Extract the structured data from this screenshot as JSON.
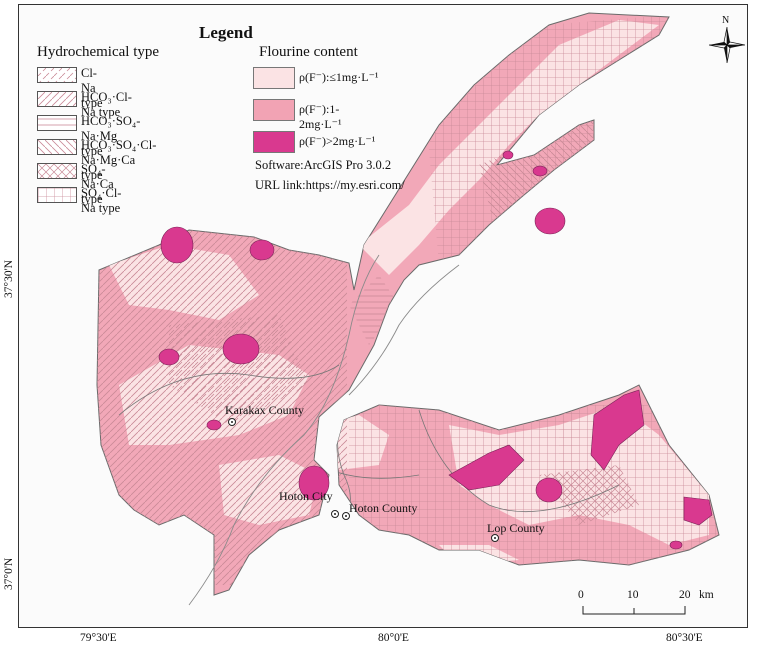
{
  "legend": {
    "title": "Legend",
    "hydro_title": "Hydrochemical type",
    "hydro_items": [
      {
        "label": "Cl-Na type",
        "pattern": "diag-dash"
      },
      {
        "label": "HCO₃·Cl-Na type",
        "pattern": "diag-solid"
      },
      {
        "label": "HCO₃·SO₄-Na·Mg type",
        "pattern": "horizontal"
      },
      {
        "label": "HCO₃·SO₄·Cl-Na·Mg·Ca type",
        "pattern": "backslash"
      },
      {
        "label": "SO₄-Na·Ca type",
        "pattern": "cross-diag"
      },
      {
        "label": "SO₄·Cl-Na type",
        "pattern": "grid"
      }
    ],
    "fluorine_title": "Flourine content",
    "fluorine_items": [
      {
        "label": "ρ(F⁻):≤1mg·L⁻¹",
        "color": "#fbe3e4"
      },
      {
        "label": "ρ(F⁻):1-2mg·L⁻¹",
        "color": "#f2a3b4"
      },
      {
        "label": "ρ(F⁻)>2mg·L⁻¹",
        "color": "#d9398f"
      }
    ],
    "software": "Software:ArcGIS Pro 3.0.2",
    "url": "URL link:https://my.esri.com/"
  },
  "places": {
    "karakax": "Karakax County",
    "hoton_city": "Hoton City",
    "hoton_county": "Hoton County",
    "lop": "Lop County"
  },
  "axes": {
    "lat_top": "37°30'N",
    "lat_bottom": "37°0'N",
    "lon_left": "79°30'E",
    "lon_mid": "80°0'E",
    "lon_right": "80°30'E"
  },
  "north": "N",
  "scale_bar": {
    "ticks": [
      "0",
      "10",
      "20"
    ],
    "unit": "km"
  }
}
